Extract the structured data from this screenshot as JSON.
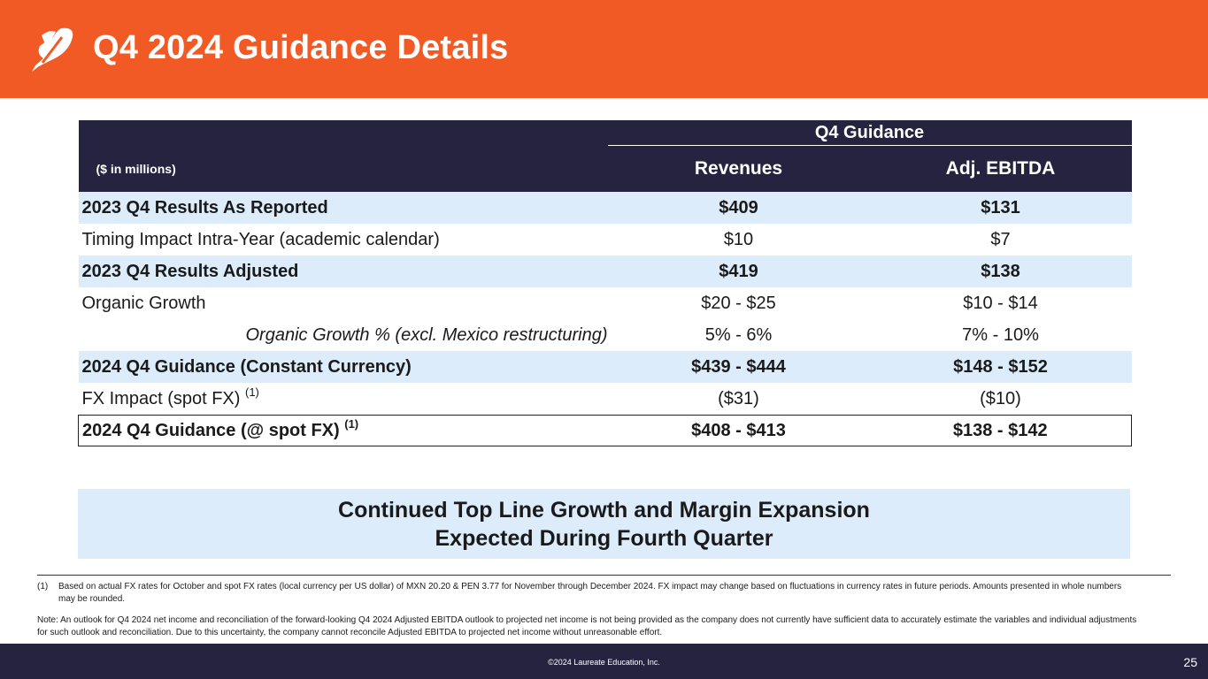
{
  "header": {
    "title": "Q4 2024 Guidance Details",
    "logo_icon": "leaf-logo-icon"
  },
  "table": {
    "group_header": "Q4 Guidance",
    "units_label": "($ in millions)",
    "columns": [
      "Revenues",
      "Adj. EBITDA"
    ],
    "rows": [
      {
        "label": "2023 Q4 Results As Reported",
        "revenues": "$409",
        "ebitda": "$131"
      },
      {
        "label": "Timing Impact Intra-Year (academic calendar)",
        "revenues": "$10",
        "ebitda": "$7"
      },
      {
        "label": "2023 Q4 Results Adjusted",
        "revenues": "$419",
        "ebitda": "$138"
      },
      {
        "label": "Organic Growth",
        "revenues": "$20 - $25",
        "ebitda": "$10 - $14"
      },
      {
        "label": "Organic Growth % (excl. Mexico restructuring)",
        "revenues": "5% - 6%",
        "ebitda": "7% - 10%"
      },
      {
        "label": "2024 Q4 Guidance (Constant Currency)",
        "revenues": "$439 - $444",
        "ebitda": "$148 - $152"
      },
      {
        "label": "FX Impact (spot FX)",
        "sup": "(1)",
        "revenues": "($31)",
        "ebitda": "($10)"
      },
      {
        "label": "2024 Q4 Guidance (@ spot FX)",
        "sup": "(1)",
        "revenues": "$408 - $413",
        "ebitda": "$138 - $142"
      }
    ]
  },
  "callout": {
    "line1": "Continued Top Line Growth and Margin Expansion",
    "line2": "Expected During Fourth Quarter"
  },
  "footnotes": {
    "note1_marker": "(1)",
    "note1_text": "Based on actual FX rates for October and spot FX rates (local currency per US dollar) of MXN 20.20 & PEN 3.77 for November through December 2024. FX impact may change based on fluctuations in currency rates in future periods. Amounts presented in whole numbers may be rounded.",
    "note2_text": "Note: An outlook for Q4 2024 net income and reconciliation of the forward-looking Q4 2024 Adjusted EBITDA outlook to projected net income is not being provided as the company does not currently have sufficient data to accurately estimate the variables and individual adjustments for such outlook and reconciliation. Due to this uncertainty, the company cannot reconcile Adjusted EBITDA to projected net income without unreasonable effort."
  },
  "footer": {
    "copyright": "©2024 Laureate Education, Inc.",
    "page_number": "25"
  },
  "colors": {
    "brand_orange": "#f15a24",
    "navy": "#25233f",
    "light_blue": "#dcecfb"
  }
}
